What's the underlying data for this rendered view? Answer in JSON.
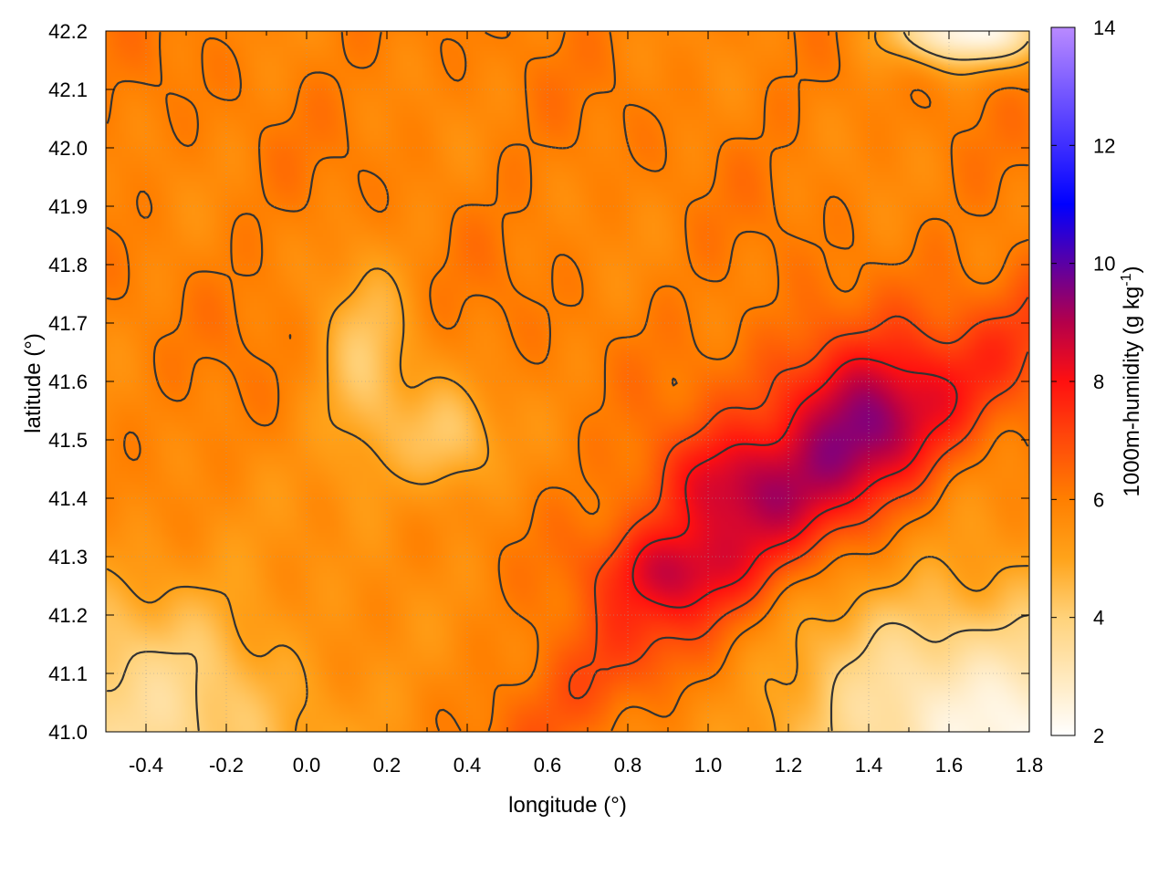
{
  "chart_data": {
    "type": "heatmap",
    "title": "",
    "xlabel": "longitude (°)",
    "ylabel": "latitude (°)",
    "colorbar_label": "1000m-humidity (g kg",
    "colorbar_label_exp": "-1",
    "colorbar_label_close": ")",
    "xlim": [
      -0.5,
      1.8
    ],
    "ylim": [
      41.0,
      42.2
    ],
    "clim": [
      2,
      14
    ],
    "x_ticks": [
      -0.4,
      -0.2,
      0.0,
      0.2,
      0.4,
      0.6,
      0.8,
      1.0,
      1.2,
      1.4,
      1.6,
      1.8
    ],
    "x_tick_labels": [
      "-0.4",
      "-0.2",
      "0.0",
      "0.2",
      "0.4",
      "0.6",
      "0.8",
      "1.0",
      "1.2",
      "1.4",
      "1.6",
      "1.8"
    ],
    "y_ticks": [
      41.0,
      41.1,
      41.2,
      41.3,
      41.4,
      41.5,
      41.6,
      41.7,
      41.8,
      41.9,
      42.0,
      42.1,
      42.2
    ],
    "y_tick_labels": [
      "41.0",
      "41.1",
      "41.2",
      "41.3",
      "41.4",
      "41.5",
      "41.6",
      "41.7",
      "41.8",
      "41.9",
      "42.0",
      "42.1",
      "42.2"
    ],
    "cbar_ticks": [
      2,
      4,
      6,
      8,
      10,
      12,
      14
    ],
    "cbar_tick_labels": [
      "2",
      "4",
      "6",
      "8",
      "10",
      "12",
      "14"
    ],
    "colormap": [
      {
        "v": 2,
        "c": "#ffffff"
      },
      {
        "v": 4,
        "c": "#ffd27a"
      },
      {
        "v": 5,
        "c": "#ffa31a"
      },
      {
        "v": 6,
        "c": "#ff7f00"
      },
      {
        "v": 7,
        "c": "#ff4a0a"
      },
      {
        "v": 8,
        "c": "#ff1010"
      },
      {
        "v": 9,
        "c": "#b4004a"
      },
      {
        "v": 11,
        "c": "#0000ff"
      },
      {
        "v": 14,
        "c": "#b98aff"
      }
    ],
    "contour_levels": [
      4,
      5,
      6,
      7,
      8
    ],
    "contour_color": "#333333",
    "grid": true,
    "field_features": [
      {
        "lon": -0.5,
        "lat": 41.0,
        "value": 3.6,
        "spread_lon": 0.55,
        "spread_lat": 0.28
      },
      {
        "lon": 1.75,
        "lat": 41.0,
        "value": 2.4,
        "spread_lon": 0.55,
        "spread_lat": 0.25
      },
      {
        "lon": 1.65,
        "lat": 42.2,
        "value": 2.3,
        "spread_lon": 0.2,
        "spread_lat": 0.06
      },
      {
        "lon": 1.35,
        "lat": 41.55,
        "value": 8.6,
        "spread_lon": 0.22,
        "spread_lat": 0.14
      },
      {
        "lon": 1.05,
        "lat": 41.42,
        "value": 8.4,
        "spread_lon": 0.18,
        "spread_lat": 0.1
      },
      {
        "lon": 0.9,
        "lat": 41.28,
        "value": 7.9,
        "spread_lon": 0.18,
        "spread_lat": 0.08
      },
      {
        "lon": 0.15,
        "lat": 41.6,
        "value": 4.3,
        "spread_lon": 0.12,
        "spread_lat": 0.2
      },
      {
        "lon": 0.35,
        "lat": 41.5,
        "value": 4.2,
        "spread_lon": 0.12,
        "spread_lat": 0.1
      }
    ]
  }
}
